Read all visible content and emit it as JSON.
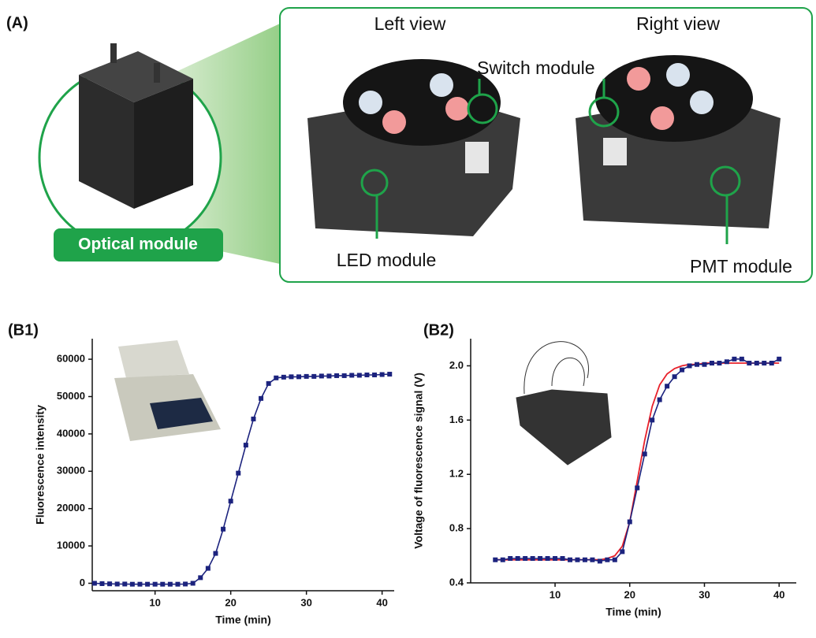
{
  "panel_a": {
    "label": "(A)",
    "left_view": "Left view",
    "right_view": "Right view",
    "switch_module": "Switch module",
    "led_module": "LED module",
    "pmt_module": "PMT module",
    "optical_module": "Optical module"
  },
  "chart_data": [
    {
      "type": "line",
      "panel": "(B1)",
      "x_label": "Time (min)",
      "y_label": "Fluorescence intensity",
      "x": [
        2,
        3,
        4,
        5,
        6,
        7,
        8,
        9,
        10,
        11,
        12,
        13,
        14,
        15,
        16,
        17,
        18,
        19,
        20,
        21,
        22,
        23,
        24,
        25,
        26,
        27,
        28,
        29,
        30,
        31,
        32,
        33,
        34,
        35,
        36,
        37,
        38,
        39,
        40,
        41
      ],
      "series": [
        {
          "color": "#1c237e",
          "markers": true,
          "values": [
            0,
            -100,
            -150,
            -200,
            -200,
            -250,
            -250,
            -250,
            -250,
            -250,
            -250,
            -250,
            -200,
            0,
            1500,
            4000,
            8000,
            14500,
            22000,
            29500,
            37000,
            44000,
            49500,
            53500,
            55000,
            55200,
            55300,
            55300,
            55400,
            55400,
            55500,
            55500,
            55600,
            55600,
            55700,
            55700,
            55800,
            55800,
            55900,
            56000
          ]
        }
      ],
      "xlim": [
        1.7,
        41.6
      ],
      "ylim": [
        -2000,
        65500
      ],
      "xticks": [
        10,
        20,
        30,
        40
      ],
      "yticks": [
        0,
        10000,
        20000,
        30000,
        40000,
        50000,
        60000
      ]
    },
    {
      "type": "line",
      "panel": "(B2)",
      "x_label": "Time (min)",
      "y_label": "Voltage of fluorescence signal (V)",
      "x": [
        2,
        3,
        4,
        5,
        6,
        7,
        8,
        9,
        10,
        11,
        12,
        13,
        14,
        15,
        16,
        17,
        18,
        19,
        20,
        21,
        22,
        23,
        24,
        25,
        26,
        27,
        28,
        29,
        30,
        31,
        32,
        33,
        34,
        35,
        36,
        37,
        38,
        39,
        40
      ],
      "series": [
        {
          "color": "#e8202a",
          "markers": false,
          "values": [
            0.57,
            0.57,
            0.57,
            0.57,
            0.57,
            0.57,
            0.57,
            0.57,
            0.57,
            0.57,
            0.57,
            0.57,
            0.57,
            0.57,
            0.57,
            0.58,
            0.6,
            0.67,
            0.85,
            1.15,
            1.45,
            1.7,
            1.86,
            1.94,
            1.98,
            2.0,
            2.01,
            2.01,
            2.02,
            2.02,
            2.02,
            2.02,
            2.02,
            2.02,
            2.02,
            2.02,
            2.02,
            2.02,
            2.02
          ]
        },
        {
          "color": "#1c237e",
          "markers": true,
          "values": [
            0.57,
            0.57,
            0.58,
            0.58,
            0.58,
            0.58,
            0.58,
            0.58,
            0.58,
            0.58,
            0.57,
            0.57,
            0.57,
            0.57,
            0.56,
            0.57,
            0.57,
            0.63,
            0.85,
            1.1,
            1.35,
            1.6,
            1.75,
            1.85,
            1.92,
            1.97,
            2.0,
            2.01,
            2.01,
            2.02,
            2.02,
            2.03,
            2.05,
            2.05,
            2.02,
            2.02,
            2.02,
            2.02,
            2.05
          ]
        }
      ],
      "xlim": [
        -1.3,
        42.3
      ],
      "ylim": [
        0.4,
        2.2
      ],
      "xticks": [
        10,
        20,
        30,
        40
      ],
      "yticks": [
        0.4,
        0.8,
        1.2,
        1.6,
        {
          "value": 2,
          "label": "2.0"
        }
      ]
    }
  ]
}
